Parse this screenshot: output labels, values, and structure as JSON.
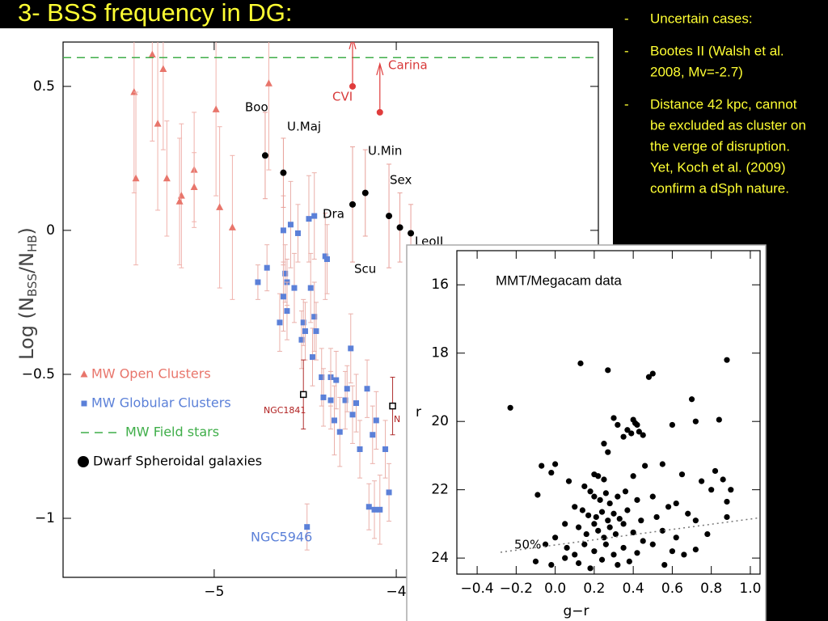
{
  "title": "3- BSS frequency in DG:",
  "bullets": [
    {
      "marker": "-",
      "lines": [
        "Uncertain cases:"
      ]
    },
    {
      "marker": "-",
      "lines": [
        "Bootes II (Walsh et al.",
        "2008, Mv=-2.7)"
      ]
    },
    {
      "marker": "-",
      "lines": [
        "Distance 42 kpc, cannot",
        "be excluded as cluster on",
        "the verge of disruption.",
        "Yet, Koch et al. (2009)",
        "confirm a dSph nature."
      ]
    }
  ],
  "chart_data": [
    {
      "type": "scatter",
      "y_label_parts": [
        "Log  (N",
        "BSS",
        "/N",
        "HB",
        ")"
      ],
      "xlim": [
        -5.83,
        -2.89
      ],
      "ylim": [
        -1.205,
        0.654
      ],
      "xticks": [
        {
          "value": -5,
          "label": "−5"
        },
        {
          "value": -4,
          "label": "−4"
        }
      ],
      "yticks": [
        {
          "value": -1,
          "label": "−1"
        },
        {
          "value": -0.5,
          "label": "−0.5"
        },
        0,
        0.5
      ],
      "legend": "lower left",
      "series": [
        {
          "name": "MW Open Clusters",
          "color": "#e8756b",
          "error_color": "#f0b2ac",
          "marker": "triangle",
          "x": [
            -5.44,
            -5.43,
            -5.34,
            -5.28,
            -5.31,
            -5.26,
            -5.18,
            -5.19,
            -5.11,
            -5.11,
            -4.99,
            -4.97,
            -4.9,
            -4.7
          ],
          "values": [
            0.48,
            0.18,
            0.61,
            0.56,
            0.37,
            0.18,
            0.12,
            0.1,
            0.21,
            0.15,
            0.42,
            0.08,
            0.01,
            0.51
          ],
          "errors": [
            0.35,
            0.3,
            0.3,
            0.28,
            0.3,
            0.2,
            0.25,
            0.22,
            0.2,
            0.12,
            0.3,
            0.28,
            0.25,
            0.3
          ]
        },
        {
          "name": "MW Globular Clusters",
          "color": "#5b80d8",
          "error_color": "#eab0aa",
          "marker": "square",
          "x": [
            -4.76,
            -4.71,
            -4.64,
            -4.62,
            -4.61,
            -4.6,
            -4.62,
            -4.6,
            -4.58,
            -4.54,
            -4.56,
            -4.52,
            -4.51,
            -4.5,
            -4.48,
            -4.45,
            -4.47,
            -4.46,
            -4.45,
            -4.44,
            -4.41,
            -4.39,
            -4.38,
            -4.36,
            -4.36,
            -4.34,
            -4.33,
            -4.4,
            -4.31,
            -4.28,
            -4.27,
            -4.25,
            -4.24,
            -4.22,
            -4.2,
            -4.16,
            -4.13,
            -4.11,
            -4.09,
            -4.06,
            -4.04,
            -4.15,
            -4.12,
            -4.49
          ],
          "values": [
            -0.18,
            -0.13,
            -0.32,
            0.0,
            -0.15,
            -0.18,
            -0.23,
            -0.28,
            0.02,
            -0.01,
            -0.2,
            -0.38,
            -0.32,
            -0.35,
            0.04,
            0.05,
            -0.2,
            -0.44,
            -0.3,
            -0.35,
            -0.51,
            -0.09,
            -0.1,
            -0.51,
            -0.59,
            -0.66,
            -0.52,
            -0.58,
            -0.7,
            -0.59,
            -0.55,
            -0.41,
            -0.64,
            -0.6,
            -0.76,
            -0.55,
            -0.71,
            -0.66,
            -0.97,
            -0.76,
            -0.91,
            -0.96,
            -0.97,
            -1.03
          ],
          "errors": [
            0.06,
            0.08,
            0.1,
            0.12,
            0.1,
            0.08,
            0.12,
            0.1,
            0.15,
            0.1,
            0.12,
            0.1,
            0.08,
            0.1,
            0.15,
            0.15,
            0.12,
            0.1,
            0.12,
            0.1,
            0.1,
            0.15,
            0.12,
            0.1,
            0.1,
            0.12,
            0.1,
            0.1,
            0.12,
            0.1,
            0.08,
            0.12,
            0.1,
            0.1,
            0.1,
            0.1,
            0.1,
            0.1,
            0.12,
            0.1,
            0.1,
            0.08,
            0.1,
            0.08
          ]
        },
        {
          "name": "MW Field stars",
          "color": "#3fae49",
          "hline": 0.6
        },
        {
          "name": "Dwarf Spheroidal galaxies",
          "color": "#000000",
          "error_color": "#e8a09a",
          "marker": "circle",
          "x": [
            -4.72,
            -4.62,
            -4.24,
            -4.17,
            -4.04,
            -3.98,
            -3.92
          ],
          "values": [
            0.26,
            0.2,
            0.09,
            0.13,
            0.05,
            0.01,
            -0.01
          ],
          "errors": [
            0.15,
            0.12,
            0.2,
            0.15,
            0.18,
            0.12,
            0.1
          ]
        },
        {
          "color": "#e03c3c",
          "marker": "circle",
          "lower_limit": true,
          "x": [
            -4.24,
            -4.09
          ],
          "values": [
            0.5,
            0.41
          ]
        },
        {
          "color": "#000000",
          "error_color": "#b03030",
          "marker": "open-square",
          "x": [
            -4.51,
            -4.02
          ],
          "values": [
            -0.57,
            -0.61
          ],
          "errors": [
            0.12,
            0.1
          ]
        }
      ],
      "annotations": [
        {
          "text": "Boo",
          "color": "#000"
        },
        {
          "text": "U.Maj",
          "color": "#000"
        },
        {
          "text": "U.Min",
          "color": "#000"
        },
        {
          "text": "Sex",
          "color": "#000"
        },
        {
          "text": "Dra",
          "color": "#000"
        },
        {
          "text": "LeoII",
          "color": "#000"
        },
        {
          "text": "Scu",
          "color": "#000"
        },
        {
          "text": "CVI",
          "color": "#d83a3a"
        },
        {
          "text": "Carina",
          "color": "#d83a3a"
        },
        {
          "text": "NGC1841",
          "color": "#b02020"
        },
        {
          "text": "N",
          "color": "#b02020"
        },
        {
          "text": "NGC5946",
          "color": "#5b80d8"
        }
      ]
    },
    {
      "type": "scatter",
      "title": "MMT/Megacam data",
      "x_label": "g−r",
      "y_label": "r",
      "xlim": [
        -0.504,
        1.05
      ],
      "ylim": [
        24.47,
        15.0
      ],
      "xticks": [
        {
          "value": -0.4,
          "label": "−0.4"
        },
        {
          "value": -0.2,
          "label": "−0.2"
        },
        {
          "value": 0,
          "label": "0.0"
        },
        0.2,
        0.4,
        0.6,
        0.8,
        {
          "value": 1,
          "label": "1.0"
        }
      ],
      "yticks": [
        16,
        18,
        20,
        22,
        24
      ],
      "series": [
        {
          "color": "#000000",
          "marker": "dot",
          "x": [
            -0.23,
            0.13,
            0.27,
            0.48,
            0.5,
            0.88,
            0.7,
            0.3,
            0.32,
            0.37,
            0.4,
            0.41,
            0.43,
            0.45,
            0.39,
            0.42,
            0.35,
            0.6,
            0.72,
            0.84,
            0.25,
            0.27,
            -0.07,
            -0.02,
            0.0,
            0.07,
            0.2,
            0.22,
            0.25,
            0.4,
            0.46,
            0.55,
            0.65,
            0.75,
            0.82,
            0.86,
            0.9,
            0.88,
            0.8,
            -0.09,
            0.15,
            0.18,
            0.2,
            0.23,
            0.26,
            0.28,
            0.32,
            0.36,
            0.42,
            0.5,
            0.58,
            0.62,
            0.1,
            0.14,
            0.17,
            0.21,
            0.24,
            0.27,
            0.3,
            0.33,
            0.37,
            0.44,
            0.52,
            0.68,
            0.72,
            0.88,
            0.05,
            0.12,
            0.16,
            0.2,
            0.22,
            0.25,
            0.28,
            0.31,
            0.35,
            0.4,
            0.45,
            0.55,
            0.62,
            0.78,
            -0.05,
            0.0,
            0.06,
            0.1,
            0.15,
            0.2,
            0.26,
            0.3,
            0.35,
            0.42,
            0.5,
            0.6,
            0.72,
            -0.1,
            -0.02,
            0.05,
            0.12,
            0.18,
            0.24,
            0.32,
            0.38,
            0.56,
            0.66
          ],
          "values": [
            19.6,
            18.3,
            18.5,
            18.7,
            18.6,
            18.2,
            19.35,
            19.9,
            20.1,
            20.25,
            19.95,
            20.05,
            20.3,
            20.4,
            20.35,
            20.1,
            20.45,
            20.1,
            20.0,
            19.95,
            20.65,
            20.9,
            21.3,
            21.5,
            21.25,
            21.75,
            21.55,
            21.6,
            21.7,
            21.6,
            21.3,
            21.25,
            21.55,
            21.75,
            21.45,
            21.7,
            22.0,
            22.35,
            22.0,
            22.15,
            21.9,
            22.05,
            22.2,
            22.3,
            22.1,
            22.4,
            22.2,
            22.05,
            22.3,
            22.2,
            22.5,
            22.4,
            22.5,
            22.6,
            22.75,
            22.8,
            22.65,
            22.9,
            22.7,
            22.85,
            22.6,
            22.9,
            22.8,
            22.7,
            22.9,
            22.8,
            23.0,
            23.1,
            23.3,
            23.0,
            23.2,
            23.4,
            23.1,
            23.3,
            23.0,
            23.25,
            23.5,
            23.2,
            23.4,
            23.3,
            23.6,
            23.4,
            23.7,
            23.9,
            23.6,
            23.8,
            23.6,
            23.9,
            23.7,
            23.85,
            23.6,
            23.8,
            23.75,
            24.1,
            24.2,
            24.0,
            24.15,
            24.3,
            24.05,
            24.2,
            24.1,
            24.2,
            23.9
          ]
        },
        {
          "color": "#777777",
          "style": "dotted",
          "x": [
            -0.28,
            1.05
          ],
          "values": [
            23.83,
            22.82
          ]
        }
      ],
      "annotations": [
        {
          "text": "50%",
          "color": "#000"
        }
      ]
    }
  ]
}
